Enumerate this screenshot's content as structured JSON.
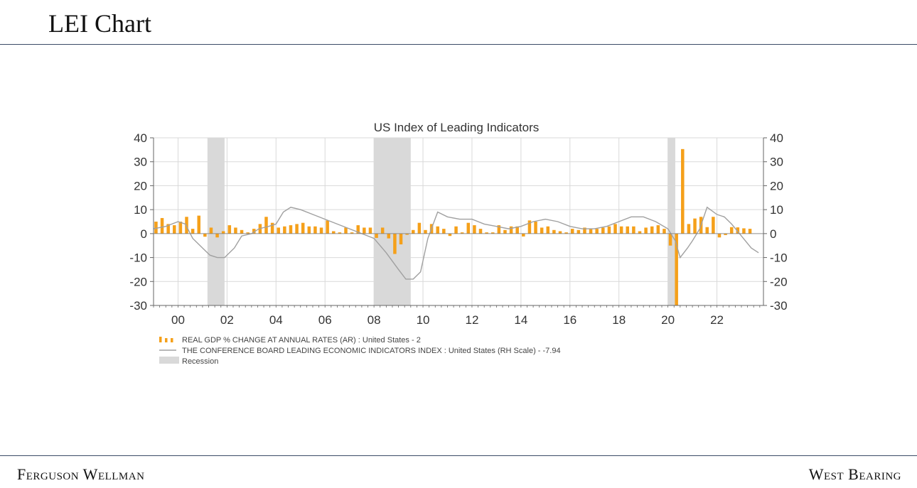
{
  "page": {
    "title": "LEI Chart",
    "footer_left": "Ferguson Wellman",
    "footer_right": "West Bearing"
  },
  "colors": {
    "gdp_bar": "#f5a01a",
    "lei_line": "#a0a0a0",
    "recession": "#d9d9d9",
    "grid": "#d9d9d9",
    "rule": "#3a4a66"
  },
  "chart_data": {
    "type": "bar",
    "title": "US Index of Leading Indicators",
    "xlabel": "",
    "ylabel": "",
    "x_range": [
      1999.0,
      2023.9
    ],
    "ylim": [
      -30,
      40
    ],
    "y_right_lim": [
      -30,
      40
    ],
    "y_ticks": [
      40,
      30,
      20,
      10,
      0,
      -10,
      -20,
      -30
    ],
    "x_ticks": [
      {
        "value": 2000,
        "label": "00"
      },
      {
        "value": 2002,
        "label": "02"
      },
      {
        "value": 2004,
        "label": "04"
      },
      {
        "value": 2006,
        "label": "06"
      },
      {
        "value": 2008,
        "label": "08"
      },
      {
        "value": 2010,
        "label": "10"
      },
      {
        "value": 2012,
        "label": "12"
      },
      {
        "value": 2014,
        "label": "14"
      },
      {
        "value": 2016,
        "label": "16"
      },
      {
        "value": 2018,
        "label": "18"
      },
      {
        "value": 2020,
        "label": "20"
      },
      {
        "value": 2022,
        "label": "22"
      }
    ],
    "grid": true,
    "legend_position": "bottom-left",
    "recessions": [
      [
        2001.2,
        2001.9
      ],
      [
        2008.0,
        2009.5
      ],
      [
        2020.0,
        2020.3
      ]
    ],
    "series": [
      {
        "name": "REAL GDP % CHANGE AT ANNUAL RATES (AR) : United States - 2",
        "type": "bar",
        "x": [
          1999.1,
          1999.35,
          1999.6,
          1999.85,
          2000.1,
          2000.35,
          2000.6,
          2000.85,
          2001.1,
          2001.35,
          2001.6,
          2001.85,
          2002.1,
          2002.35,
          2002.6,
          2002.85,
          2003.1,
          2003.35,
          2003.6,
          2003.85,
          2004.1,
          2004.35,
          2004.6,
          2004.85,
          2005.1,
          2005.35,
          2005.6,
          2005.85,
          2006.1,
          2006.35,
          2006.6,
          2006.85,
          2007.1,
          2007.35,
          2007.6,
          2007.85,
          2008.1,
          2008.35,
          2008.6,
          2008.85,
          2009.1,
          2009.35,
          2009.6,
          2009.85,
          2010.1,
          2010.35,
          2010.6,
          2010.85,
          2011.1,
          2011.35,
          2011.6,
          2011.85,
          2012.1,
          2012.35,
          2012.6,
          2012.85,
          2013.1,
          2013.35,
          2013.6,
          2013.85,
          2014.1,
          2014.35,
          2014.6,
          2014.85,
          2015.1,
          2015.35,
          2015.6,
          2015.85,
          2016.1,
          2016.35,
          2016.6,
          2016.85,
          2017.1,
          2017.35,
          2017.6,
          2017.85,
          2018.1,
          2018.35,
          2018.6,
          2018.85,
          2019.1,
          2019.35,
          2019.6,
          2019.85,
          2020.1,
          2020.35,
          2020.6,
          2020.85,
          2021.1,
          2021.35,
          2021.6,
          2021.85,
          2022.1,
          2022.35,
          2022.6,
          2022.85,
          2023.1,
          2023.35
        ],
        "values": [
          5,
          6.5,
          4,
          3.5,
          5,
          7,
          2,
          7.5,
          -1.3,
          2.5,
          -1.6,
          1,
          3.5,
          2.5,
          1.5,
          0.5,
          2,
          4,
          7,
          4.5,
          2.5,
          3,
          3.5,
          4,
          4.5,
          3,
          3,
          2.5,
          5.5,
          1,
          0.5,
          2.5,
          0.5,
          3.5,
          2.5,
          2.5,
          -1.8,
          2.5,
          -2,
          -8.5,
          -4.5,
          -0.5,
          1.5,
          4.5,
          1.5,
          4,
          3,
          2,
          -1,
          3,
          0.5,
          4.5,
          3.5,
          2,
          0.5,
          0.5,
          3.5,
          1.5,
          3,
          3,
          -1.2,
          5.5,
          5,
          2.5,
          3,
          1.5,
          1,
          0.5,
          2,
          1.5,
          2.5,
          2,
          2,
          2.5,
          3,
          4,
          3,
          3,
          3,
          1,
          2.5,
          3,
          3.5,
          2,
          -5,
          -29.9,
          35.3,
          4,
          6.3,
          7,
          2.7,
          7,
          -1.6,
          -0.6,
          2.7,
          2.6,
          2.2,
          2
        ]
      },
      {
        "name": "THE CONFERENCE BOARD LEADING ECONOMIC INDICATORS INDEX : United States (RH Scale) - -7.94",
        "type": "line",
        "x": [
          1999.0,
          1999.5,
          2000.0,
          2000.3,
          2000.6,
          2001.0,
          2001.3,
          2001.6,
          2001.9,
          2002.3,
          2002.6,
          2003.0,
          2003.3,
          2003.7,
          2004.0,
          2004.3,
          2004.6,
          2005.0,
          2005.5,
          2006.0,
          2006.5,
          2007.0,
          2007.5,
          2008.0,
          2008.5,
          2009.0,
          2009.3,
          2009.6,
          2009.9,
          2010.2,
          2010.6,
          2011.0,
          2011.5,
          2012.0,
          2012.5,
          2013.0,
          2013.5,
          2014.0,
          2014.5,
          2015.0,
          2015.5,
          2016.0,
          2016.5,
          2017.0,
          2017.5,
          2018.0,
          2018.5,
          2019.0,
          2019.5,
          2020.0,
          2020.3,
          2020.5,
          2020.8,
          2021.0,
          2021.3,
          2021.6,
          2022.0,
          2022.3,
          2022.6,
          2023.0,
          2023.4,
          2023.7
        ],
        "values": [
          2,
          3,
          5,
          4,
          -2,
          -6,
          -9,
          -10,
          -10,
          -6,
          -1,
          0,
          2,
          3,
          4,
          9,
          11,
          10,
          8,
          6,
          4,
          2,
          0,
          -2,
          -8,
          -15,
          -19,
          -19,
          -16,
          -2,
          9,
          7,
          6,
          6,
          4,
          3,
          2,
          3,
          5,
          6,
          5,
          3,
          2,
          2,
          3,
          5,
          7,
          7,
          5,
          2,
          -3,
          -10,
          -6,
          -3,
          2,
          11,
          8,
          7,
          4,
          -1,
          -6,
          -8
        ]
      }
    ],
    "legend": [
      {
        "label": "REAL GDP % CHANGE AT ANNUAL RATES (AR) : United States - 2",
        "symbol": "bars"
      },
      {
        "label": "THE CONFERENCE BOARD LEADING ECONOMIC INDICATORS INDEX : United States (RH Scale) - -7.94",
        "symbol": "line"
      },
      {
        "label": "Recession",
        "symbol": "shade"
      }
    ]
  }
}
